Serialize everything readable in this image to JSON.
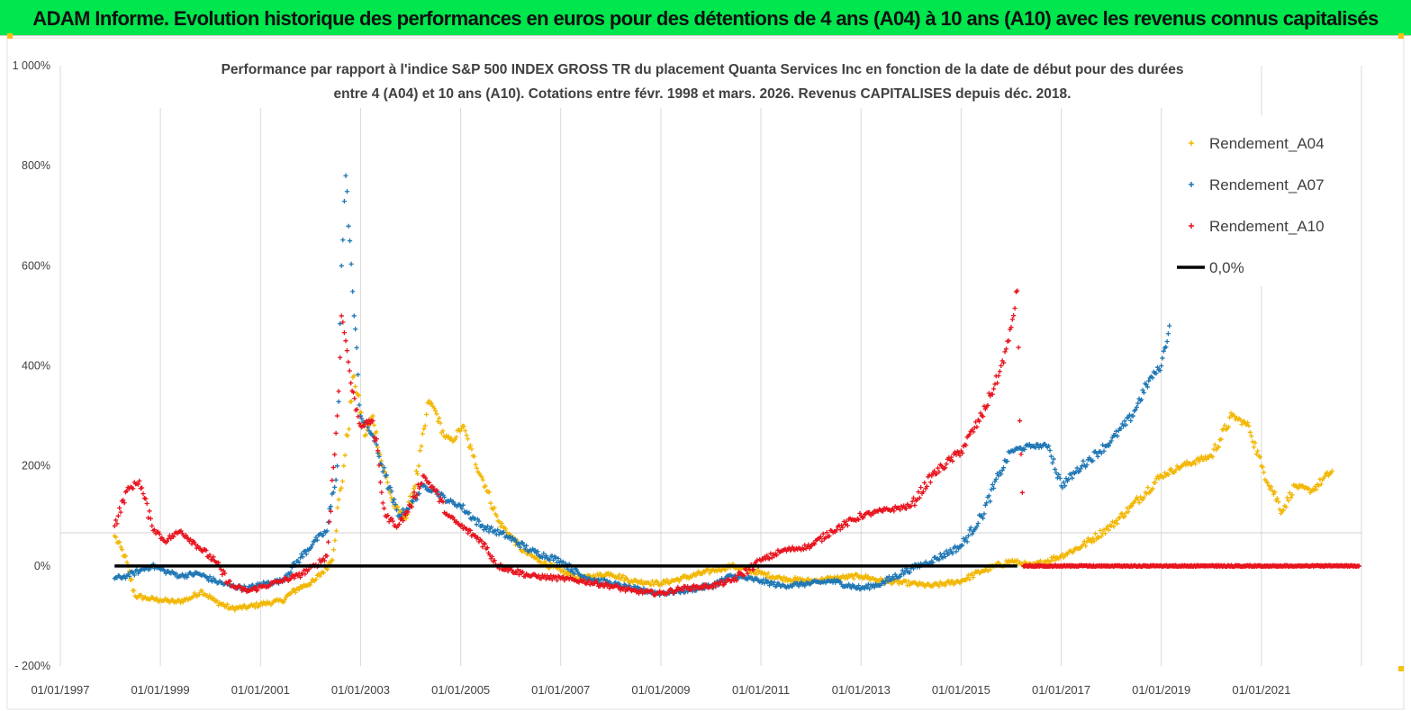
{
  "banner": {
    "title": "ADAM Informe. Evolution historique des performances en euros pour des détentions de 4 ans (A04) à 10 ans (A10) avec les revenus connus capitalisés",
    "background": "#00e64d"
  },
  "chart_data": {
    "type": "scatter",
    "title_lines": [
      "Performance par rapport à l'indice S&P 500 INDEX GROSS TR  du placement Quanta Services Inc en fonction de la date de début pour des durées",
      "entre 4 (A04) et 10 ans (A10). Cotations entre févr. 1998 et mars. 2026. Revenus CAPITALISES depuis déc. 2018."
    ],
    "x_ticks": [
      "01/01/1997",
      "01/01/1999",
      "01/01/2001",
      "01/01/2003",
      "01/01/2005",
      "01/01/2007",
      "01/01/2009",
      "01/01/2011",
      "01/01/2013",
      "01/01/2015",
      "01/01/2017",
      "01/01/2019",
      "01/01/2021"
    ],
    "y_ticks": [
      "- 200%",
      "0%",
      "200%",
      "400%",
      "600%",
      "800%",
      "1 000%"
    ],
    "xlim": [
      "1997-01-01",
      "2023-01-01"
    ],
    "ylim": [
      -200,
      1000
    ],
    "grid": "vertical",
    "legend_position": "top-right",
    "series": [
      {
        "name": "Rendement_A04",
        "color": "#f2b705",
        "points": [
          [
            "1998-02-01",
            60
          ],
          [
            "1998-04-15",
            20
          ],
          [
            "1998-07-01",
            -60
          ],
          [
            "1998-10-01",
            -65
          ],
          [
            "1999-01-01",
            -68
          ],
          [
            "1999-05-01",
            -72
          ],
          [
            "1999-08-01",
            -65
          ],
          [
            "1999-11-01",
            -50
          ],
          [
            "2000-02-01",
            -70
          ],
          [
            "2000-06-01",
            -85
          ],
          [
            "2000-10-01",
            -82
          ],
          [
            "2001-02-01",
            -75
          ],
          [
            "2001-06-01",
            -70
          ],
          [
            "2001-10-01",
            -45
          ],
          [
            "2002-02-01",
            -30
          ],
          [
            "2002-06-01",
            10
          ],
          [
            "2002-09-01",
            200
          ],
          [
            "2002-11-15",
            380
          ],
          [
            "2003-02-01",
            260
          ],
          [
            "2003-04-01",
            300
          ],
          [
            "2003-06-01",
            210
          ],
          [
            "2003-09-01",
            120
          ],
          [
            "2003-12-01",
            95
          ],
          [
            "2004-03-01",
            200
          ],
          [
            "2004-05-15",
            330
          ],
          [
            "2004-07-01",
            310
          ],
          [
            "2004-09-01",
            260
          ],
          [
            "2004-11-01",
            250
          ],
          [
            "2005-01-15",
            280
          ],
          [
            "2005-04-01",
            220
          ],
          [
            "2005-07-01",
            160
          ],
          [
            "2005-10-01",
            90
          ],
          [
            "2006-01-01",
            60
          ],
          [
            "2006-04-01",
            30
          ],
          [
            "2006-08-01",
            10
          ],
          [
            "2007-01-01",
            -10
          ],
          [
            "2007-06-01",
            -25
          ],
          [
            "2008-01-01",
            -15
          ],
          [
            "2008-06-01",
            -30
          ],
          [
            "2009-01-01",
            -35
          ],
          [
            "2009-06-01",
            -25
          ],
          [
            "2010-01-01",
            -10
          ],
          [
            "2010-06-01",
            0
          ],
          [
            "2011-01-01",
            -15
          ],
          [
            "2011-06-01",
            -25
          ],
          [
            "2012-01-01",
            -30
          ],
          [
            "2012-06-01",
            -25
          ],
          [
            "2013-01-01",
            -20
          ],
          [
            "2013-06-01",
            -30
          ],
          [
            "2014-01-01",
            -35
          ],
          [
            "2014-06-01",
            -40
          ],
          [
            "2015-01-01",
            -30
          ],
          [
            "2015-06-01",
            -10
          ],
          [
            "2016-01-01",
            10
          ],
          [
            "2016-06-01",
            0
          ],
          [
            "2017-01-01",
            20
          ],
          [
            "2017-06-01",
            40
          ],
          [
            "2018-01-01",
            80
          ],
          [
            "2018-06-01",
            120
          ],
          [
            "2019-01-01",
            180
          ],
          [
            "2019-06-01",
            200
          ],
          [
            "2020-01-01",
            220
          ],
          [
            "2020-06-01",
            300
          ],
          [
            "2020-10-01",
            280
          ],
          [
            "2021-01-01",
            200
          ],
          [
            "2021-06-01",
            110
          ],
          [
            "2021-09-01",
            160
          ],
          [
            "2022-01-01",
            150
          ],
          [
            "2022-06-01",
            190
          ]
        ]
      },
      {
        "name": "Rendement_A07",
        "color": "#1f77b4",
        "points": [
          [
            "1998-02-01",
            -25
          ],
          [
            "1998-05-01",
            -20
          ],
          [
            "1998-08-01",
            -10
          ],
          [
            "1998-11-01",
            0
          ],
          [
            "1999-02-01",
            -10
          ],
          [
            "1999-06-01",
            -20
          ],
          [
            "1999-10-01",
            -15
          ],
          [
            "2000-02-01",
            -30
          ],
          [
            "2000-06-01",
            -40
          ],
          [
            "2000-10-01",
            -45
          ],
          [
            "2001-02-01",
            -35
          ],
          [
            "2001-06-01",
            -30
          ],
          [
            "2001-10-01",
            10
          ],
          [
            "2002-02-01",
            50
          ],
          [
            "2002-05-01",
            70
          ],
          [
            "2002-07-15",
            200
          ],
          [
            "2002-08-15",
            600
          ],
          [
            "2002-09-15",
            780
          ],
          [
            "2002-10-15",
            650
          ],
          [
            "2002-11-15",
            500
          ],
          [
            "2003-01-01",
            300
          ],
          [
            "2003-04-01",
            260
          ],
          [
            "2003-07-01",
            180
          ],
          [
            "2003-10-01",
            100
          ],
          [
            "2004-01-01",
            120
          ],
          [
            "2004-04-01",
            160
          ],
          [
            "2004-07-01",
            150
          ],
          [
            "2004-10-01",
            130
          ],
          [
            "2005-01-01",
            120
          ],
          [
            "2005-06-01",
            80
          ],
          [
            "2005-12-01",
            60
          ],
          [
            "2006-06-01",
            30
          ],
          [
            "2007-01-01",
            10
          ],
          [
            "2007-06-01",
            -20
          ],
          [
            "2008-01-01",
            -35
          ],
          [
            "2008-06-01",
            -45
          ],
          [
            "2009-01-01",
            -55
          ],
          [
            "2009-06-01",
            -50
          ],
          [
            "2010-01-01",
            -40
          ],
          [
            "2010-06-01",
            -20
          ],
          [
            "2011-01-01",
            -30
          ],
          [
            "2011-06-01",
            -40
          ],
          [
            "2012-01-01",
            -35
          ],
          [
            "2012-06-01",
            -30
          ],
          [
            "2013-01-01",
            -45
          ],
          [
            "2013-06-01",
            -35
          ],
          [
            "2014-01-01",
            -5
          ],
          [
            "2014-06-01",
            10
          ],
          [
            "2015-01-01",
            40
          ],
          [
            "2015-06-01",
            100
          ],
          [
            "2015-10-01",
            180
          ],
          [
            "2016-01-01",
            230
          ],
          [
            "2016-06-01",
            240
          ],
          [
            "2016-10-01",
            240
          ],
          [
            "2017-01-01",
            160
          ],
          [
            "2017-06-01",
            200
          ],
          [
            "2018-01-01",
            250
          ],
          [
            "2018-06-01",
            300
          ],
          [
            "2018-10-01",
            370
          ],
          [
            "2019-01-01",
            400
          ],
          [
            "2019-03-01",
            480
          ]
        ]
      },
      {
        "name": "Rendement_A10",
        "color": "#e8141e",
        "points": [
          [
            "1998-02-01",
            80
          ],
          [
            "1998-05-01",
            150
          ],
          [
            "1998-08-01",
            170
          ],
          [
            "1998-11-01",
            80
          ],
          [
            "1999-02-01",
            50
          ],
          [
            "1999-06-01",
            70
          ],
          [
            "1999-10-01",
            40
          ],
          [
            "2000-02-01",
            10
          ],
          [
            "2000-06-01",
            -40
          ],
          [
            "2000-10-01",
            -50
          ],
          [
            "2001-02-01",
            -40
          ],
          [
            "2001-06-01",
            -30
          ],
          [
            "2001-10-01",
            -20
          ],
          [
            "2002-02-01",
            0
          ],
          [
            "2002-05-01",
            20
          ],
          [
            "2002-07-15",
            300
          ],
          [
            "2002-08-15",
            500
          ],
          [
            "2002-09-15",
            450
          ],
          [
            "2002-11-01",
            350
          ],
          [
            "2003-01-01",
            280
          ],
          [
            "2003-04-01",
            290
          ],
          [
            "2003-07-01",
            100
          ],
          [
            "2003-10-01",
            80
          ],
          [
            "2004-01-01",
            120
          ],
          [
            "2004-04-01",
            180
          ],
          [
            "2004-07-01",
            150
          ],
          [
            "2004-10-01",
            100
          ],
          [
            "2005-01-01",
            80
          ],
          [
            "2005-06-01",
            50
          ],
          [
            "2005-10-01",
            0
          ],
          [
            "2006-06-01",
            -20
          ],
          [
            "2007-01-01",
            -25
          ],
          [
            "2007-06-01",
            -30
          ],
          [
            "2008-01-01",
            -40
          ],
          [
            "2008-06-01",
            -50
          ],
          [
            "2009-01-01",
            -55
          ],
          [
            "2009-06-01",
            -45
          ],
          [
            "2010-01-01",
            -40
          ],
          [
            "2010-06-01",
            -30
          ],
          [
            "2011-01-01",
            10
          ],
          [
            "2011-06-01",
            30
          ],
          [
            "2012-01-01",
            40
          ],
          [
            "2012-06-01",
            70
          ],
          [
            "2013-01-01",
            100
          ],
          [
            "2013-06-01",
            110
          ],
          [
            "2014-01-01",
            120
          ],
          [
            "2014-06-01",
            180
          ],
          [
            "2015-01-01",
            230
          ],
          [
            "2015-06-01",
            300
          ],
          [
            "2015-10-01",
            380
          ],
          [
            "2015-12-15",
            450
          ],
          [
            "2016-02-15",
            550
          ],
          [
            "2016-04-01",
            0
          ],
          [
            "2017-01-01",
            0
          ],
          [
            "2018-01-01",
            0
          ],
          [
            "2019-01-01",
            0
          ],
          [
            "2020-01-01",
            0
          ],
          [
            "2021-01-01",
            0
          ],
          [
            "2022-01-01",
            0
          ],
          [
            "2022-12-15",
            0
          ]
        ]
      },
      {
        "name": "0,0%",
        "color": "#000000",
        "style": "line",
        "points": [
          [
            "1998-02-01",
            0
          ],
          [
            "2016-02-15",
            0
          ]
        ]
      }
    ]
  }
}
